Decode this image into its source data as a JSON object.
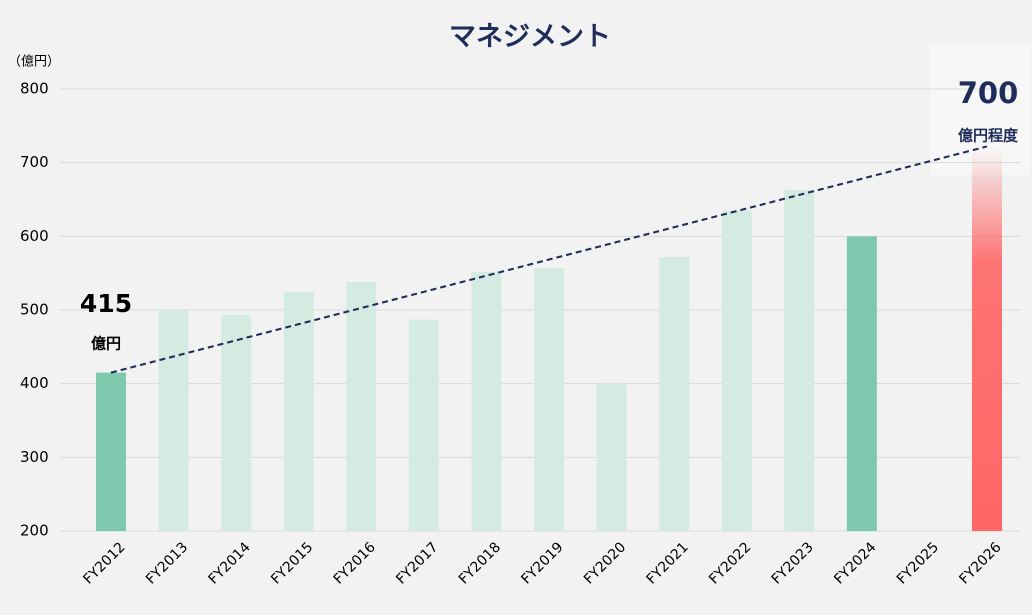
{
  "chart_data": {
    "type": "bar",
    "title": "マネジメント",
    "y_unit_label": "（億円）",
    "categories": [
      "FY2012",
      "FY2013",
      "FY2014",
      "FY2015",
      "FY2016",
      "FY2017",
      "FY2018",
      "FY2019",
      "FY2020",
      "FY2021",
      "FY2022",
      "FY2023",
      "FY2024",
      "FY2025",
      "FY2026"
    ],
    "values": [
      415,
      500,
      493,
      525,
      538,
      487,
      552,
      557,
      400,
      572,
      635,
      663,
      600,
      null,
      720
    ],
    "colors": [
      "#7ec8ae",
      "#d4ebe2",
      "#d4ebe2",
      "#d4ebe2",
      "#d4ebe2",
      "#d4ebe2",
      "#d4ebe2",
      "#d4ebe2",
      "#d4ebe2",
      "#d4ebe2",
      "#d4ebe2",
      "#d4ebe2",
      "#7ec8ae",
      "#d4ebe2",
      "#ff6666"
    ],
    "faded_top": [
      false,
      false,
      false,
      false,
      false,
      false,
      false,
      false,
      false,
      false,
      false,
      false,
      false,
      false,
      true
    ],
    "ylim": [
      200,
      800
    ],
    "yticks": [
      200,
      300,
      400,
      500,
      600,
      700,
      800
    ],
    "grid": true,
    "trend_line": {
      "start": 415,
      "end": 722,
      "color": "#1f2d5a"
    },
    "annotations": [
      {
        "text": "415",
        "unit": "億円",
        "category": 0
      },
      {
        "text": "700",
        "unit": "億円程度",
        "category": 14
      }
    ]
  }
}
